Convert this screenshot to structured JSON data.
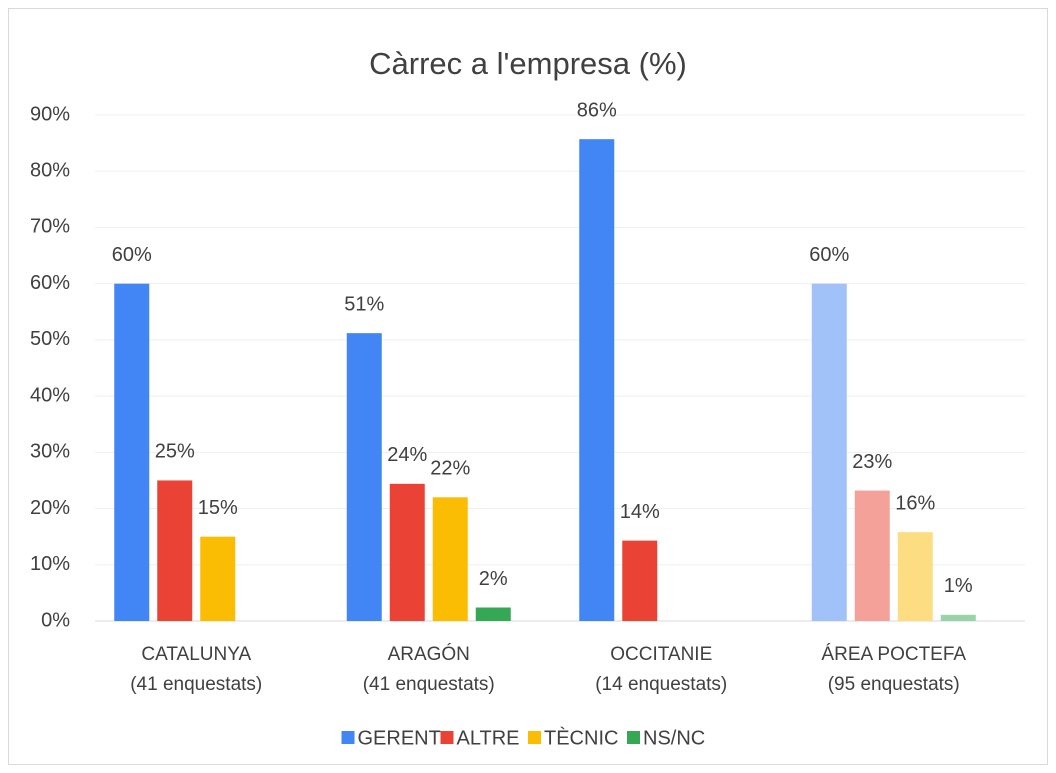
{
  "chart_data": {
    "type": "bar",
    "title": "Càrrec a l'empresa (%)",
    "categories": [
      [
        "CATALUNYA",
        "(41 enquestats)"
      ],
      [
        "ARAGÓN",
        "(41 enquestats)"
      ],
      [
        "OCCITANIE",
        "(14 enquestats)"
      ],
      [
        "ÁREA POCTEFA",
        "(95 enquestats)"
      ]
    ],
    "series": [
      {
        "name": "GERENT",
        "color": "#4285f4",
        "colors": [
          "#4285f4",
          "#4285f4",
          "#4285f4",
          "#a0c2f9"
        ],
        "values": [
          60,
          51.2,
          85.7,
          60
        ],
        "value_labels": [
          "60%",
          "51%",
          "86%",
          "60%"
        ]
      },
      {
        "name": "ALTRE",
        "color": "#ea4335",
        "colors": [
          "#ea4335",
          "#ea4335",
          "#ea4335",
          "#f4a19a"
        ],
        "values": [
          25,
          24.4,
          14.3,
          23.2
        ],
        "value_labels": [
          "25%",
          "24%",
          "14%",
          "23%"
        ]
      },
      {
        "name": "TÈCNIC",
        "color": "#fbbc04",
        "colors": [
          "#fbbc04",
          "#fbbc04",
          "#fbbc04",
          "#fddd81"
        ],
        "values": [
          15,
          22,
          null,
          15.8
        ],
        "value_labels": [
          "15%",
          "22%",
          null,
          "16%"
        ]
      },
      {
        "name": "NS/NC",
        "color": "#34a853",
        "colors": [
          "#34a853",
          "#34a853",
          "#34a853",
          "#99d3a9"
        ],
        "values": [
          null,
          2.4,
          null,
          1.1
        ],
        "value_labels": [
          null,
          "2%",
          null,
          "1%"
        ]
      }
    ],
    "ylim": [
      0,
      90
    ],
    "yticks": [
      {
        "value": 0,
        "label": "0%"
      },
      {
        "value": 10,
        "label": "10%"
      },
      {
        "value": 20,
        "label": "20%"
      },
      {
        "value": 30,
        "label": "30%"
      },
      {
        "value": 40,
        "label": "40%"
      },
      {
        "value": 50,
        "label": "50%"
      },
      {
        "value": 60,
        "label": "60%"
      },
      {
        "value": 70,
        "label": "70%"
      },
      {
        "value": 80,
        "label": "80%"
      },
      {
        "value": 90,
        "label": "90%"
      }
    ],
    "grid": true,
    "legend": "bottom"
  }
}
